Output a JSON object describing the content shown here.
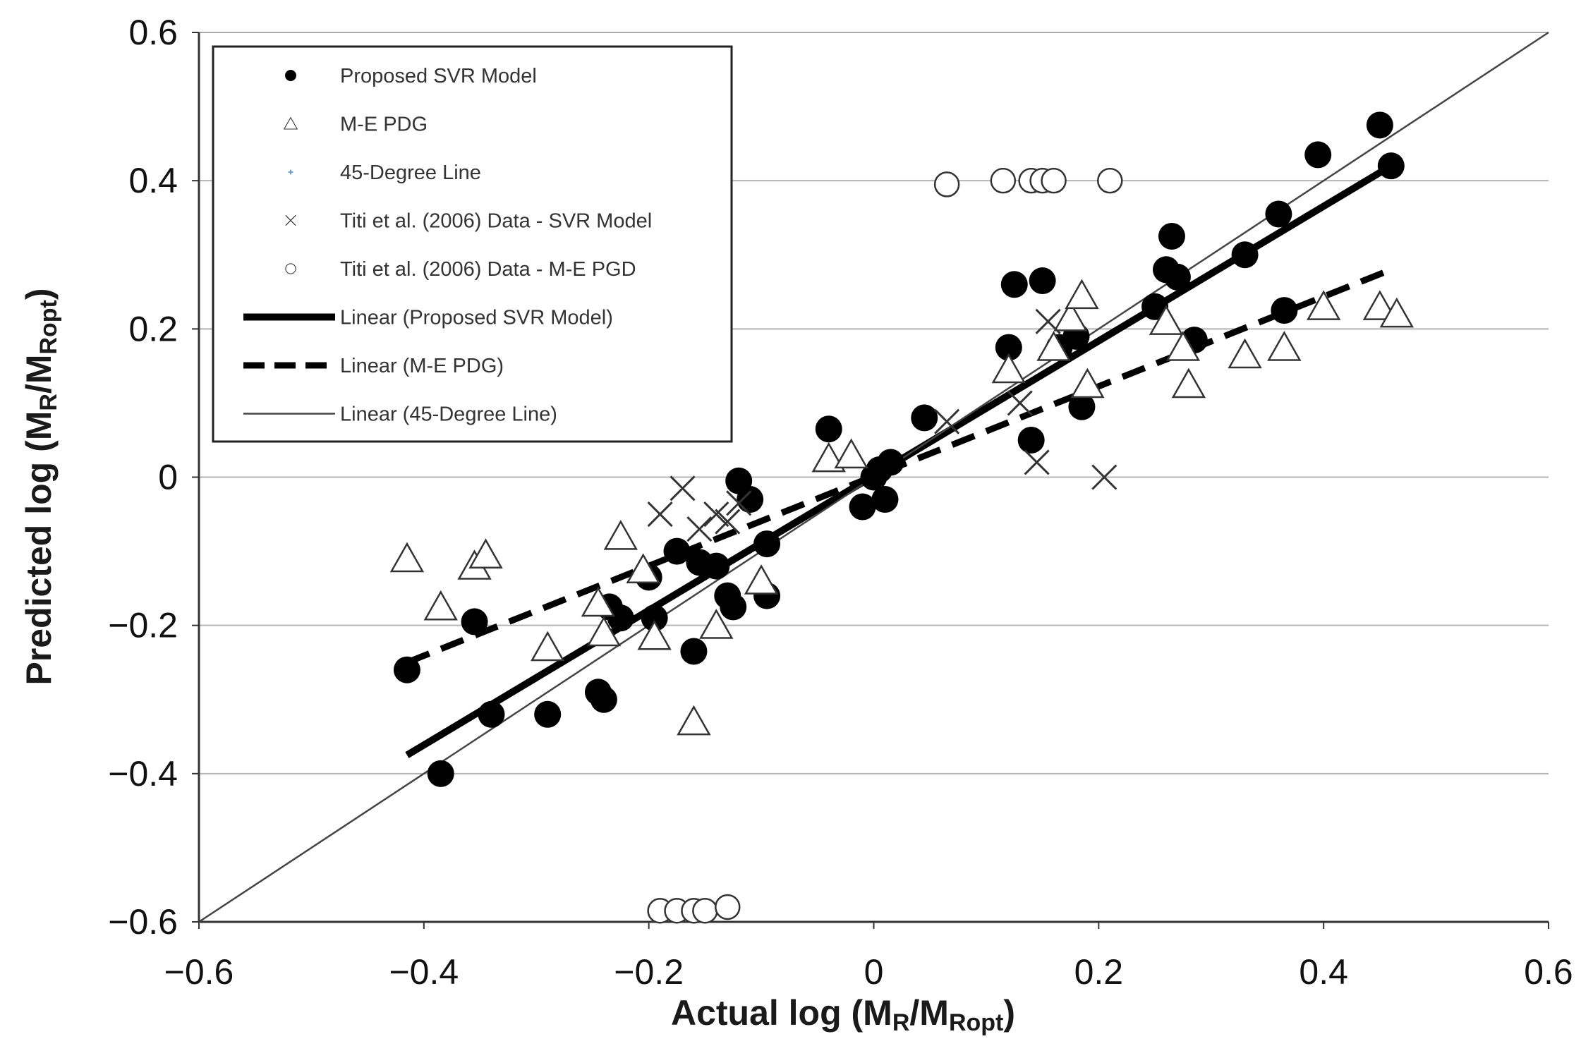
{
  "chart_data": {
    "type": "scatter",
    "xlabel": "Actual log (M",
    "xlabel_sub1": "R",
    "xlabel_mid": "/M",
    "xlabel_sub2": "Ropt",
    "xlabel_end": ")",
    "ylabel": "Predicted log (M",
    "ylabel_sub1": "R",
    "ylabel_mid": "/M",
    "ylabel_sub2": "Ropt",
    "ylabel_end": ")",
    "xlim": [
      -0.6,
      0.6
    ],
    "ylim": [
      -0.6,
      0.6
    ],
    "x_ticks": [
      "−0.6",
      "−0.4",
      "−0.2",
      "0",
      "0.2",
      "0.4",
      "0.6"
    ],
    "y_ticks": [
      "0.6",
      "0.4",
      "0.2",
      "0",
      "−0.2",
      "−0.4",
      "−0.6"
    ],
    "grid": "horizontal",
    "legend_position": "top-left",
    "legend": [
      {
        "label": "Proposed SVR Model",
        "symbol": "filled-circle"
      },
      {
        "label": "M-E PDG",
        "symbol": "triangle"
      },
      {
        "label": "45-Degree Line",
        "symbol": "plus"
      },
      {
        "label": "Titi et al. (2006) Data - SVR Model",
        "symbol": "x"
      },
      {
        "label": "Titi et al. (2006) Data - M-E PGD",
        "symbol": "open-circle"
      },
      {
        "label": "Linear (Proposed SVR Model)",
        "symbol": "thick-line"
      },
      {
        "label": "Linear (M-E PDG)",
        "symbol": "dashed-line"
      },
      {
        "label": "Linear (45-Degree Line)",
        "symbol": "thin-line"
      }
    ],
    "series": [
      {
        "name": "Proposed SVR Model",
        "marker": "filled-circle",
        "points": [
          [
            -0.415,
            -0.26
          ],
          [
            -0.385,
            -0.4
          ],
          [
            -0.355,
            -0.195
          ],
          [
            -0.34,
            -0.32
          ],
          [
            -0.29,
            -0.32
          ],
          [
            -0.245,
            -0.29
          ],
          [
            -0.24,
            -0.3
          ],
          [
            -0.235,
            -0.175
          ],
          [
            -0.225,
            -0.19
          ],
          [
            -0.2,
            -0.135
          ],
          [
            -0.195,
            -0.19
          ],
          [
            -0.175,
            -0.1
          ],
          [
            -0.16,
            -0.235
          ],
          [
            -0.155,
            -0.115
          ],
          [
            -0.14,
            -0.12
          ],
          [
            -0.13,
            -0.16
          ],
          [
            -0.125,
            -0.175
          ],
          [
            -0.12,
            -0.005
          ],
          [
            -0.11,
            -0.03
          ],
          [
            -0.095,
            -0.09
          ],
          [
            -0.095,
            -0.16
          ],
          [
            -0.04,
            0.065
          ],
          [
            -0.01,
            -0.04
          ],
          [
            0.0,
            0.0
          ],
          [
            0.005,
            0.01
          ],
          [
            0.01,
            -0.03
          ],
          [
            0.015,
            0.02
          ],
          [
            0.045,
            0.08
          ],
          [
            0.12,
            0.175
          ],
          [
            0.125,
            0.26
          ],
          [
            0.14,
            0.05
          ],
          [
            0.15,
            0.265
          ],
          [
            0.165,
            0.175
          ],
          [
            0.18,
            0.19
          ],
          [
            0.185,
            0.095
          ],
          [
            0.25,
            0.23
          ],
          [
            0.26,
            0.28
          ],
          [
            0.265,
            0.325
          ],
          [
            0.27,
            0.27
          ],
          [
            0.285,
            0.185
          ],
          [
            0.33,
            0.3
          ],
          [
            0.36,
            0.355
          ],
          [
            0.365,
            0.225
          ],
          [
            0.395,
            0.435
          ],
          [
            0.45,
            0.475
          ],
          [
            0.46,
            0.42
          ]
        ]
      },
      {
        "name": "M-E PDG",
        "marker": "triangle",
        "points": [
          [
            -0.415,
            -0.11
          ],
          [
            -0.385,
            -0.175
          ],
          [
            -0.355,
            -0.12
          ],
          [
            -0.345,
            -0.105
          ],
          [
            -0.29,
            -0.23
          ],
          [
            -0.245,
            -0.17
          ],
          [
            -0.24,
            -0.21
          ],
          [
            -0.225,
            -0.08
          ],
          [
            -0.205,
            -0.125
          ],
          [
            -0.195,
            -0.215
          ],
          [
            -0.16,
            -0.33
          ],
          [
            -0.14,
            -0.2
          ],
          [
            -0.1,
            -0.14
          ],
          [
            -0.04,
            0.025
          ],
          [
            -0.02,
            0.03
          ],
          [
            0.12,
            0.145
          ],
          [
            0.16,
            0.175
          ],
          [
            0.175,
            0.215
          ],
          [
            0.185,
            0.245
          ],
          [
            0.19,
            0.125
          ],
          [
            0.26,
            0.21
          ],
          [
            0.275,
            0.175
          ],
          [
            0.28,
            0.125
          ],
          [
            0.33,
            0.165
          ],
          [
            0.365,
            0.175
          ],
          [
            0.4,
            0.23
          ],
          [
            0.45,
            0.23
          ],
          [
            0.465,
            0.22
          ]
        ]
      },
      {
        "name": "Titi et al. (2006) Data - SVR Model",
        "marker": "x",
        "points": [
          [
            -0.19,
            -0.05
          ],
          [
            -0.17,
            -0.015
          ],
          [
            -0.155,
            -0.07
          ],
          [
            -0.14,
            -0.05
          ],
          [
            -0.13,
            -0.06
          ],
          [
            -0.12,
            -0.035
          ],
          [
            0.065,
            0.075
          ],
          [
            0.13,
            0.1
          ],
          [
            0.145,
            0.02
          ],
          [
            0.155,
            0.21
          ],
          [
            0.205,
            0.0
          ]
        ]
      },
      {
        "name": "Titi et al. (2006) Data - M-E PGD",
        "marker": "open-circle",
        "points": [
          [
            0.065,
            0.395
          ],
          [
            0.115,
            0.4
          ],
          [
            0.14,
            0.4
          ],
          [
            0.15,
            0.4
          ],
          [
            0.16,
            0.4
          ],
          [
            0.21,
            0.4
          ],
          [
            -0.19,
            -0.585
          ],
          [
            -0.175,
            -0.585
          ],
          [
            -0.16,
            -0.585
          ],
          [
            -0.15,
            -0.585
          ],
          [
            -0.13,
            -0.58
          ]
        ]
      }
    ],
    "lines": [
      {
        "name": "Linear (Proposed SVR Model)",
        "style": "thick",
        "from": [
          -0.415,
          -0.375
        ],
        "to": [
          0.46,
          0.42
        ]
      },
      {
        "name": "Linear (M-E PDG)",
        "style": "dashed",
        "from": [
          -0.415,
          -0.25
        ],
        "to": [
          0.46,
          0.28
        ]
      },
      {
        "name": "Linear (45-Degree Line)",
        "style": "thin",
        "from": [
          -0.6,
          -0.6
        ],
        "to": [
          0.6,
          0.6
        ]
      }
    ]
  }
}
